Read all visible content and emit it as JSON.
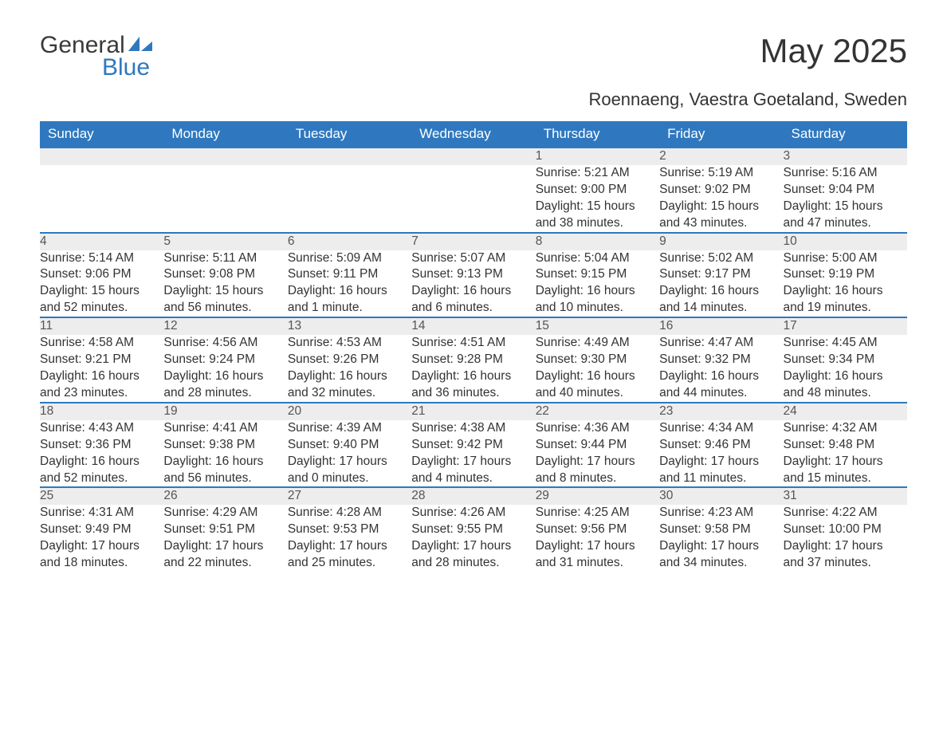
{
  "brand": {
    "general": "General",
    "blue": "Blue",
    "sail_color": "#2f78bf"
  },
  "title": "May 2025",
  "location": "Roennaeng, Vaestra Goetaland, Sweden",
  "colors": {
    "header_bg": "#2f78bf",
    "header_text": "#ffffff",
    "daynum_bg": "#ededed",
    "row_border": "#2f78bf",
    "text": "#333333"
  },
  "weekdays": [
    "Sunday",
    "Monday",
    "Tuesday",
    "Wednesday",
    "Thursday",
    "Friday",
    "Saturday"
  ],
  "weeks": [
    [
      null,
      null,
      null,
      null,
      {
        "d": "1",
        "sr": "Sunrise: 5:21 AM",
        "ss": "Sunset: 9:00 PM",
        "dl1": "Daylight: 15 hours",
        "dl2": "and 38 minutes."
      },
      {
        "d": "2",
        "sr": "Sunrise: 5:19 AM",
        "ss": "Sunset: 9:02 PM",
        "dl1": "Daylight: 15 hours",
        "dl2": "and 43 minutes."
      },
      {
        "d": "3",
        "sr": "Sunrise: 5:16 AM",
        "ss": "Sunset: 9:04 PM",
        "dl1": "Daylight: 15 hours",
        "dl2": "and 47 minutes."
      }
    ],
    [
      {
        "d": "4",
        "sr": "Sunrise: 5:14 AM",
        "ss": "Sunset: 9:06 PM",
        "dl1": "Daylight: 15 hours",
        "dl2": "and 52 minutes."
      },
      {
        "d": "5",
        "sr": "Sunrise: 5:11 AM",
        "ss": "Sunset: 9:08 PM",
        "dl1": "Daylight: 15 hours",
        "dl2": "and 56 minutes."
      },
      {
        "d": "6",
        "sr": "Sunrise: 5:09 AM",
        "ss": "Sunset: 9:11 PM",
        "dl1": "Daylight: 16 hours",
        "dl2": "and 1 minute."
      },
      {
        "d": "7",
        "sr": "Sunrise: 5:07 AM",
        "ss": "Sunset: 9:13 PM",
        "dl1": "Daylight: 16 hours",
        "dl2": "and 6 minutes."
      },
      {
        "d": "8",
        "sr": "Sunrise: 5:04 AM",
        "ss": "Sunset: 9:15 PM",
        "dl1": "Daylight: 16 hours",
        "dl2": "and 10 minutes."
      },
      {
        "d": "9",
        "sr": "Sunrise: 5:02 AM",
        "ss": "Sunset: 9:17 PM",
        "dl1": "Daylight: 16 hours",
        "dl2": "and 14 minutes."
      },
      {
        "d": "10",
        "sr": "Sunrise: 5:00 AM",
        "ss": "Sunset: 9:19 PM",
        "dl1": "Daylight: 16 hours",
        "dl2": "and 19 minutes."
      }
    ],
    [
      {
        "d": "11",
        "sr": "Sunrise: 4:58 AM",
        "ss": "Sunset: 9:21 PM",
        "dl1": "Daylight: 16 hours",
        "dl2": "and 23 minutes."
      },
      {
        "d": "12",
        "sr": "Sunrise: 4:56 AM",
        "ss": "Sunset: 9:24 PM",
        "dl1": "Daylight: 16 hours",
        "dl2": "and 28 minutes."
      },
      {
        "d": "13",
        "sr": "Sunrise: 4:53 AM",
        "ss": "Sunset: 9:26 PM",
        "dl1": "Daylight: 16 hours",
        "dl2": "and 32 minutes."
      },
      {
        "d": "14",
        "sr": "Sunrise: 4:51 AM",
        "ss": "Sunset: 9:28 PM",
        "dl1": "Daylight: 16 hours",
        "dl2": "and 36 minutes."
      },
      {
        "d": "15",
        "sr": "Sunrise: 4:49 AM",
        "ss": "Sunset: 9:30 PM",
        "dl1": "Daylight: 16 hours",
        "dl2": "and 40 minutes."
      },
      {
        "d": "16",
        "sr": "Sunrise: 4:47 AM",
        "ss": "Sunset: 9:32 PM",
        "dl1": "Daylight: 16 hours",
        "dl2": "and 44 minutes."
      },
      {
        "d": "17",
        "sr": "Sunrise: 4:45 AM",
        "ss": "Sunset: 9:34 PM",
        "dl1": "Daylight: 16 hours",
        "dl2": "and 48 minutes."
      }
    ],
    [
      {
        "d": "18",
        "sr": "Sunrise: 4:43 AM",
        "ss": "Sunset: 9:36 PM",
        "dl1": "Daylight: 16 hours",
        "dl2": "and 52 minutes."
      },
      {
        "d": "19",
        "sr": "Sunrise: 4:41 AM",
        "ss": "Sunset: 9:38 PM",
        "dl1": "Daylight: 16 hours",
        "dl2": "and 56 minutes."
      },
      {
        "d": "20",
        "sr": "Sunrise: 4:39 AM",
        "ss": "Sunset: 9:40 PM",
        "dl1": "Daylight: 17 hours",
        "dl2": "and 0 minutes."
      },
      {
        "d": "21",
        "sr": "Sunrise: 4:38 AM",
        "ss": "Sunset: 9:42 PM",
        "dl1": "Daylight: 17 hours",
        "dl2": "and 4 minutes."
      },
      {
        "d": "22",
        "sr": "Sunrise: 4:36 AM",
        "ss": "Sunset: 9:44 PM",
        "dl1": "Daylight: 17 hours",
        "dl2": "and 8 minutes."
      },
      {
        "d": "23",
        "sr": "Sunrise: 4:34 AM",
        "ss": "Sunset: 9:46 PM",
        "dl1": "Daylight: 17 hours",
        "dl2": "and 11 minutes."
      },
      {
        "d": "24",
        "sr": "Sunrise: 4:32 AM",
        "ss": "Sunset: 9:48 PM",
        "dl1": "Daylight: 17 hours",
        "dl2": "and 15 minutes."
      }
    ],
    [
      {
        "d": "25",
        "sr": "Sunrise: 4:31 AM",
        "ss": "Sunset: 9:49 PM",
        "dl1": "Daylight: 17 hours",
        "dl2": "and 18 minutes."
      },
      {
        "d": "26",
        "sr": "Sunrise: 4:29 AM",
        "ss": "Sunset: 9:51 PM",
        "dl1": "Daylight: 17 hours",
        "dl2": "and 22 minutes."
      },
      {
        "d": "27",
        "sr": "Sunrise: 4:28 AM",
        "ss": "Sunset: 9:53 PM",
        "dl1": "Daylight: 17 hours",
        "dl2": "and 25 minutes."
      },
      {
        "d": "28",
        "sr": "Sunrise: 4:26 AM",
        "ss": "Sunset: 9:55 PM",
        "dl1": "Daylight: 17 hours",
        "dl2": "and 28 minutes."
      },
      {
        "d": "29",
        "sr": "Sunrise: 4:25 AM",
        "ss": "Sunset: 9:56 PM",
        "dl1": "Daylight: 17 hours",
        "dl2": "and 31 minutes."
      },
      {
        "d": "30",
        "sr": "Sunrise: 4:23 AM",
        "ss": "Sunset: 9:58 PM",
        "dl1": "Daylight: 17 hours",
        "dl2": "and 34 minutes."
      },
      {
        "d": "31",
        "sr": "Sunrise: 4:22 AM",
        "ss": "Sunset: 10:00 PM",
        "dl1": "Daylight: 17 hours",
        "dl2": "and 37 minutes."
      }
    ]
  ]
}
